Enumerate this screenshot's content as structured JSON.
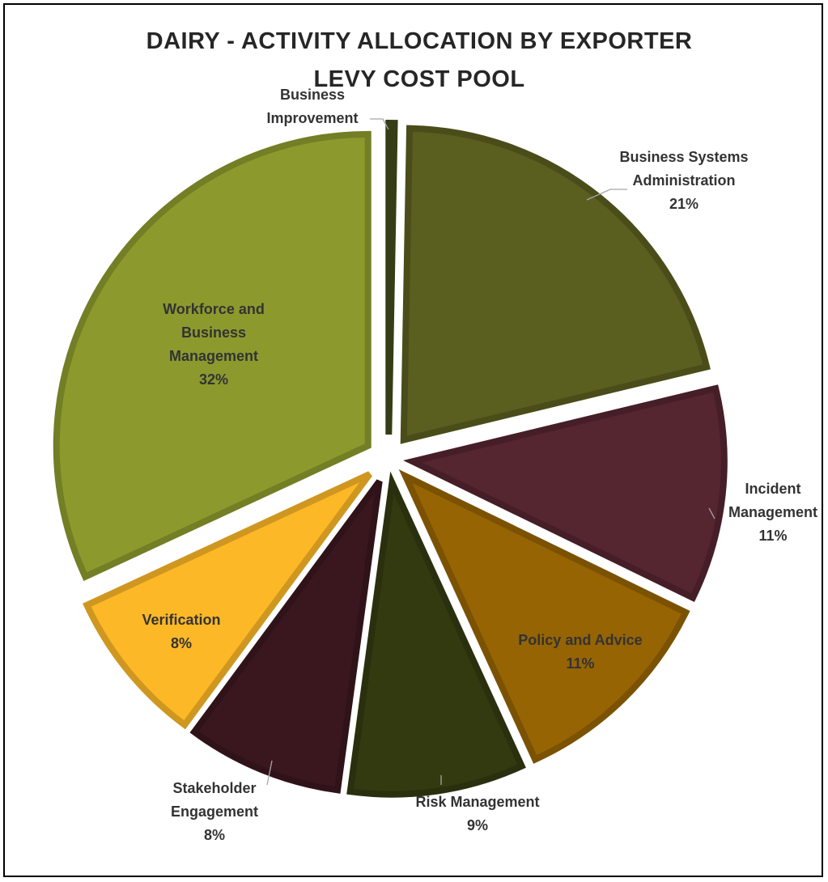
{
  "chart_data": {
    "type": "pie",
    "title_lines": [
      "DAIRY - ACTIVITY ALLOCATION BY EXPORTER",
      "LEVY COST POOL"
    ],
    "slices": [
      {
        "name_lines": [
          "Business",
          "Improvement"
        ],
        "pct_label": "",
        "value": 0.3,
        "color": "#3f4a1b"
      },
      {
        "name_lines": [
          "Business Systems",
          "Administration"
        ],
        "pct_label": "21%",
        "value": 21,
        "color": "#5a5e1e"
      },
      {
        "name_lines": [
          "Incident",
          "Management"
        ],
        "pct_label": "11%",
        "value": 11,
        "color": "#552530"
      },
      {
        "name_lines": [
          "Policy and Advice"
        ],
        "pct_label": "11%",
        "value": 11,
        "color": "#966403"
      },
      {
        "name_lines": [
          "Risk Management"
        ],
        "pct_label": "9%",
        "value": 9,
        "color": "#333a10"
      },
      {
        "name_lines": [
          "Stakeholder",
          "Engagement"
        ],
        "pct_label": "8%",
        "value": 8,
        "color": "#3a171f"
      },
      {
        "name_lines": [
          "Verification"
        ],
        "pct_label": "8%",
        "value": 8,
        "color": "#fdb827"
      },
      {
        "name_lines": [
          "Workforce and",
          "Business",
          "Management"
        ],
        "pct_label": "32%",
        "value": 32,
        "color": "#8c9a2d"
      }
    ]
  }
}
